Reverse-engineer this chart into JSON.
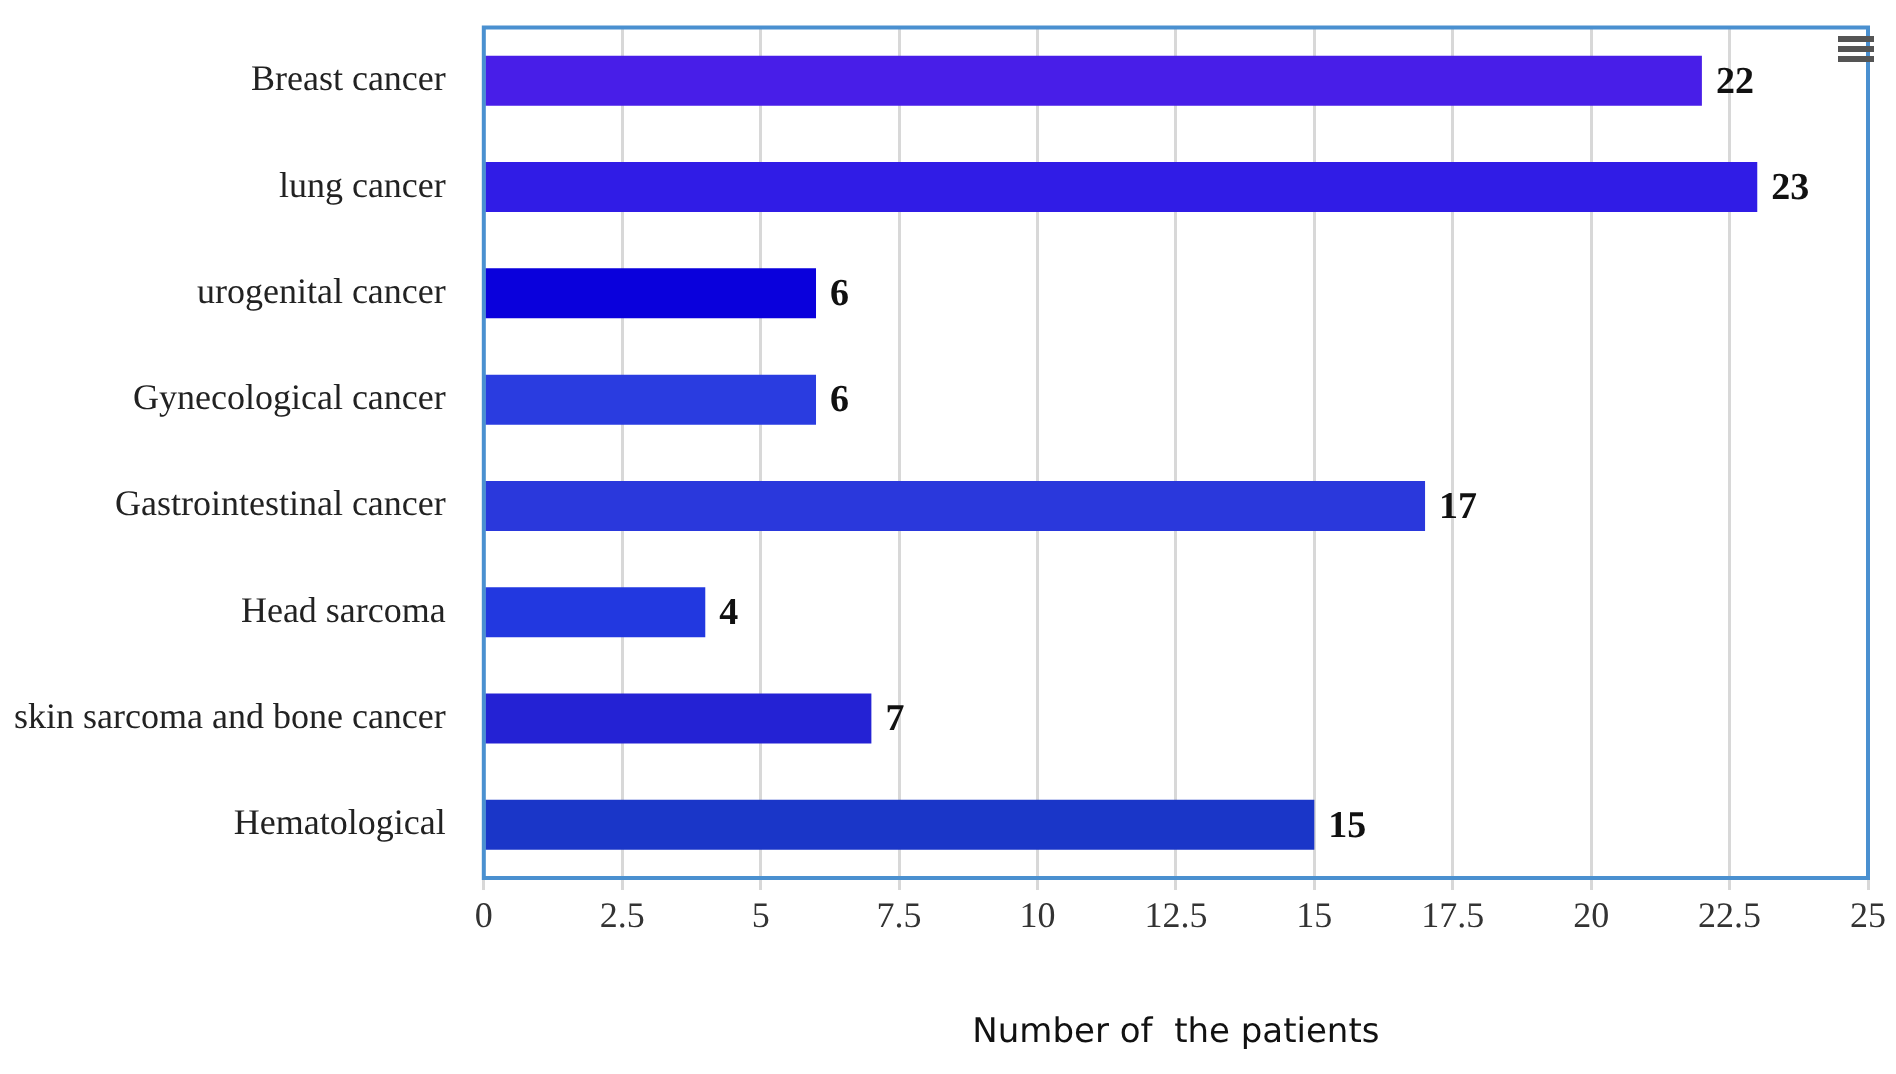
{
  "chart_data": {
    "type": "bar",
    "orientation": "horizontal",
    "xlabel": "Number of  the patients",
    "categories": [
      "Breast cancer",
      "lung cancer",
      "urogenital cancer",
      "Gynecological cancer",
      "Gastrointestinal cancer",
      "Head sarcoma",
      "skin sarcoma and bone cancer",
      "Hematological"
    ],
    "values": [
      22,
      23,
      6,
      6,
      17,
      4,
      7,
      15
    ],
    "colors": [
      "#481ee8",
      "#301ce6",
      "#0a00dc",
      "#2a3ce0",
      "#2a38dc",
      "#2238e0",
      "#2422d4",
      "#1a36c8"
    ],
    "xlim": [
      0,
      25
    ],
    "xticks": [
      0,
      2.5,
      5,
      7.5,
      10,
      12.5,
      15,
      17.5,
      20,
      22.5,
      25
    ],
    "grid": "x",
    "legend": false,
    "data_labels": true
  }
}
